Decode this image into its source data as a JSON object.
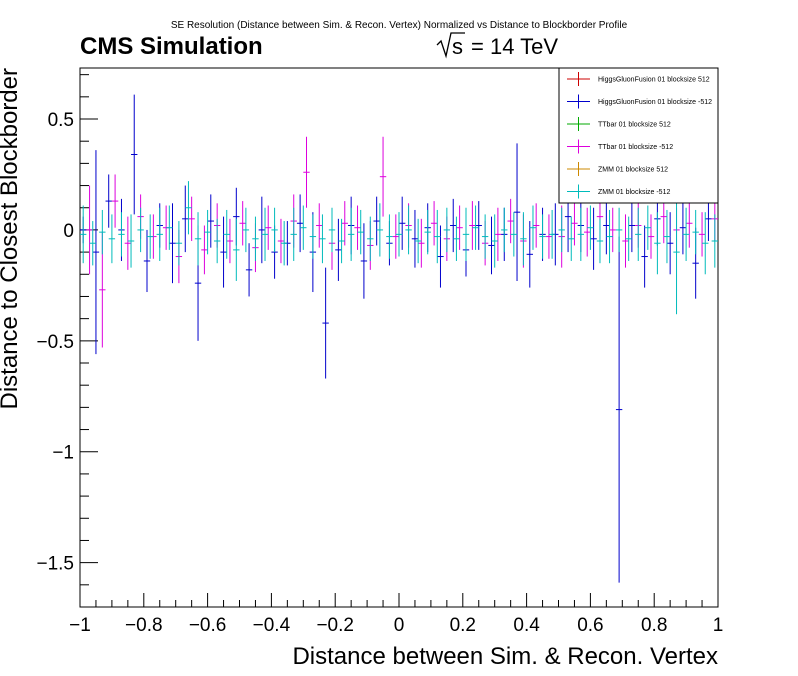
{
  "chart_data": {
    "type": "scatter",
    "title": "SE Resolution (Distance between Sim. & Recon. Vertex) Normalized vs Distance to Blockborder Profile",
    "header_left": "CMS Simulation",
    "header_right": "= 14 TeV",
    "header_right_prefix": "s",
    "xlabel": "Distance between Sim. & Recon. Vertex",
    "ylabel": "Distance to Closest Blockborder",
    "xlim": [
      -1,
      1
    ],
    "ylim": [
      -1.7,
      0.73
    ],
    "xticks": [
      -1,
      -0.8,
      -0.6,
      -0.4,
      -0.2,
      0,
      0.2,
      0.4,
      0.6,
      0.8,
      1
    ],
    "xtick_labels": [
      "−1",
      "−0.8",
      "−0.6",
      "−0.4",
      "−0.2",
      "0",
      "0.2",
      "0.4",
      "0.6",
      "0.8",
      "1"
    ],
    "yticks": [
      -1.5,
      -1,
      -0.5,
      0,
      0.5
    ],
    "ytick_labels": [
      "−1.5",
      "−1",
      "−0.5",
      "0",
      "0.5"
    ],
    "legend_position": "top-right",
    "bin_width": 0.02,
    "series": [
      {
        "name": "HiggsGluonFusion 01 blocksize 512",
        "color": "#cc0000",
        "x": [],
        "y": [],
        "err": []
      },
      {
        "name": "HiggsGluonFusion 01 blocksize -512",
        "color": "#0000cc",
        "x": [
          -0.99,
          -0.95,
          -0.91,
          -0.87,
          -0.83,
          -0.79,
          -0.75,
          -0.71,
          -0.67,
          -0.63,
          -0.59,
          -0.55,
          -0.51,
          -0.47,
          -0.43,
          -0.39,
          -0.35,
          -0.31,
          -0.27,
          -0.23,
          -0.19,
          -0.15,
          -0.11,
          -0.07,
          -0.03,
          0.01,
          0.05,
          0.09,
          0.13,
          0.17,
          0.21,
          0.25,
          0.29,
          0.33,
          0.37,
          0.41,
          0.45,
          0.49,
          0.53,
          0.57,
          0.61,
          0.65,
          0.69,
          0.73,
          0.77,
          0.81,
          0.85,
          0.89,
          0.93,
          0.97
        ],
        "y": [
          0.0,
          -0.1,
          0.13,
          0.0,
          0.34,
          -0.14,
          0.02,
          -0.06,
          0.05,
          -0.24,
          0.04,
          -0.1,
          0.06,
          -0.18,
          0.0,
          -0.1,
          -0.06,
          0.03,
          -0.1,
          -0.42,
          -0.09,
          0.02,
          -0.14,
          0.04,
          -0.06,
          0.03,
          -0.04,
          0.01,
          -0.12,
          0.02,
          -0.09,
          0.02,
          -0.07,
          -0.02,
          0.08,
          -0.11,
          -0.02,
          -0.02,
          0.06,
          0.02,
          -0.04,
          0.02,
          -0.81,
          0.02,
          -0.12,
          0.05,
          -0.06,
          0.01,
          -0.15,
          0.05
        ],
        "err": [
          0.06,
          0.46,
          0.12,
          0.14,
          0.27,
          0.14,
          0.1,
          0.18,
          0.15,
          0.26,
          0.12,
          0.16,
          0.13,
          0.12,
          0.15,
          0.12,
          0.1,
          0.13,
          0.18,
          0.25,
          0.14,
          0.13,
          0.17,
          0.11,
          0.1,
          0.12,
          0.13,
          0.11,
          0.14,
          0.12,
          0.12,
          0.11,
          0.13,
          0.12,
          0.31,
          0.15,
          0.12,
          0.14,
          0.16,
          0.12,
          0.14,
          0.13,
          0.78,
          0.12,
          0.14,
          0.12,
          0.14,
          0.12,
          0.16,
          0.1
        ]
      },
      {
        "name": "TTbar 01 blocksize 512",
        "color": "#00aa00",
        "x": [],
        "y": [],
        "err": []
      },
      {
        "name": "TTbar 01 blocksize -512",
        "color": "#dd00dd",
        "x": [
          -0.97,
          -0.93,
          -0.89,
          -0.85,
          -0.81,
          -0.77,
          -0.73,
          -0.69,
          -0.65,
          -0.61,
          -0.57,
          -0.53,
          -0.49,
          -0.45,
          -0.41,
          -0.37,
          -0.33,
          -0.29,
          -0.25,
          -0.21,
          -0.17,
          -0.13,
          -0.09,
          -0.05,
          -0.01,
          0.03,
          0.07,
          0.11,
          0.15,
          0.19,
          0.23,
          0.27,
          0.31,
          0.35,
          0.39,
          0.43,
          0.47,
          0.51,
          0.55,
          0.59,
          0.63,
          0.67,
          0.71,
          0.75,
          0.79,
          0.83,
          0.87,
          0.91,
          0.95,
          0.99
        ],
        "y": [
          0.0,
          -0.27,
          0.13,
          -0.06,
          0.06,
          -0.03,
          0.01,
          -0.12,
          0.05,
          -0.09,
          0.02,
          -0.05,
          0.03,
          -0.08,
          0.01,
          -0.05,
          0.04,
          0.26,
          0.02,
          -0.06,
          0.03,
          0.01,
          -0.07,
          0.24,
          -0.03,
          0.02,
          -0.06,
          0.03,
          -0.04,
          0.01,
          0.02,
          -0.06,
          -0.02,
          0.04,
          -0.05,
          0.02,
          -0.03,
          -0.03,
          0.03,
          -0.01,
          0.06,
          0.0,
          -0.05,
          0.02,
          -0.03,
          0.06,
          0.0,
          0.03,
          -0.02,
          0.05
        ],
        "err": [
          0.2,
          0.26,
          0.12,
          0.12,
          0.1,
          0.1,
          0.1,
          0.12,
          0.1,
          0.11,
          0.1,
          0.1,
          0.1,
          0.11,
          0.1,
          0.1,
          0.12,
          0.16,
          0.1,
          0.12,
          0.1,
          0.1,
          0.11,
          0.18,
          0.1,
          0.1,
          0.11,
          0.1,
          0.1,
          0.1,
          0.11,
          0.1,
          0.12,
          0.1,
          0.12,
          0.1,
          0.1,
          0.14,
          0.1,
          0.11,
          0.1,
          0.1,
          0.12,
          0.1,
          0.1,
          0.12,
          0.1,
          0.11,
          0.1,
          0.1
        ]
      },
      {
        "name": "ZMM 01 blocksize 512",
        "color": "#cc8800",
        "x": [],
        "y": [],
        "err": []
      },
      {
        "name": "ZMM 01 blocksize -512",
        "color": "#00bbbb",
        "x": [
          -0.99,
          -0.96,
          -0.93,
          -0.9,
          -0.87,
          -0.84,
          -0.81,
          -0.78,
          -0.75,
          -0.72,
          -0.69,
          -0.66,
          -0.63,
          -0.6,
          -0.57,
          -0.54,
          -0.51,
          -0.48,
          -0.45,
          -0.42,
          -0.39,
          -0.36,
          -0.33,
          -0.3,
          -0.27,
          -0.24,
          -0.21,
          -0.18,
          -0.15,
          -0.12,
          -0.09,
          -0.06,
          -0.03,
          0.0,
          0.03,
          0.06,
          0.09,
          0.12,
          0.15,
          0.18,
          0.21,
          0.24,
          0.27,
          0.3,
          0.33,
          0.36,
          0.39,
          0.42,
          0.45,
          0.48,
          0.51,
          0.54,
          0.57,
          0.6,
          0.63,
          0.66,
          0.69,
          0.72,
          0.75,
          0.78,
          0.81,
          0.84,
          0.87,
          0.9,
          0.93,
          0.96,
          0.99
        ],
        "y": [
          -0.02,
          -0.06,
          -0.01,
          -0.04,
          -0.02,
          -0.05,
          0.0,
          -0.03,
          -0.02,
          0.01,
          -0.06,
          0.1,
          -0.04,
          -0.01,
          -0.05,
          -0.02,
          -0.09,
          0.0,
          -0.04,
          -0.02,
          0.0,
          -0.06,
          -0.02,
          0.01,
          -0.03,
          -0.04,
          0.0,
          -0.05,
          -0.02,
          -0.01,
          -0.04,
          0.0,
          -0.03,
          -0.02,
          0.0,
          -0.05,
          -0.01,
          -0.03,
          0.0,
          -0.04,
          -0.02,
          0.01,
          -0.03,
          -0.05,
          0.0,
          -0.02,
          -0.04,
          0.01,
          -0.03,
          -0.02,
          0.0,
          -0.04,
          -0.02,
          0.01,
          -0.05,
          -0.03,
          0.0,
          -0.04,
          -0.02,
          0.01,
          -0.06,
          -0.03,
          -0.1,
          -0.02,
          -0.01,
          -0.06,
          -0.05
        ],
        "err": [
          0.13,
          0.1,
          0.1,
          0.11,
          0.1,
          0.12,
          0.1,
          0.1,
          0.12,
          0.1,
          0.1,
          0.12,
          0.12,
          0.1,
          0.1,
          0.11,
          0.14,
          0.1,
          0.1,
          0.12,
          0.1,
          0.1,
          0.12,
          0.1,
          0.1,
          0.11,
          0.1,
          0.1,
          0.12,
          0.1,
          0.1,
          0.12,
          0.1,
          0.1,
          0.11,
          0.1,
          0.1,
          0.12,
          0.1,
          0.1,
          0.12,
          0.1,
          0.1,
          0.12,
          0.1,
          0.1,
          0.12,
          0.1,
          0.1,
          0.11,
          0.1,
          0.1,
          0.12,
          0.1,
          0.1,
          0.12,
          0.1,
          0.1,
          0.12,
          0.1,
          0.14,
          0.12,
          0.28,
          0.12,
          0.1,
          0.14,
          0.12
        ]
      }
    ]
  }
}
